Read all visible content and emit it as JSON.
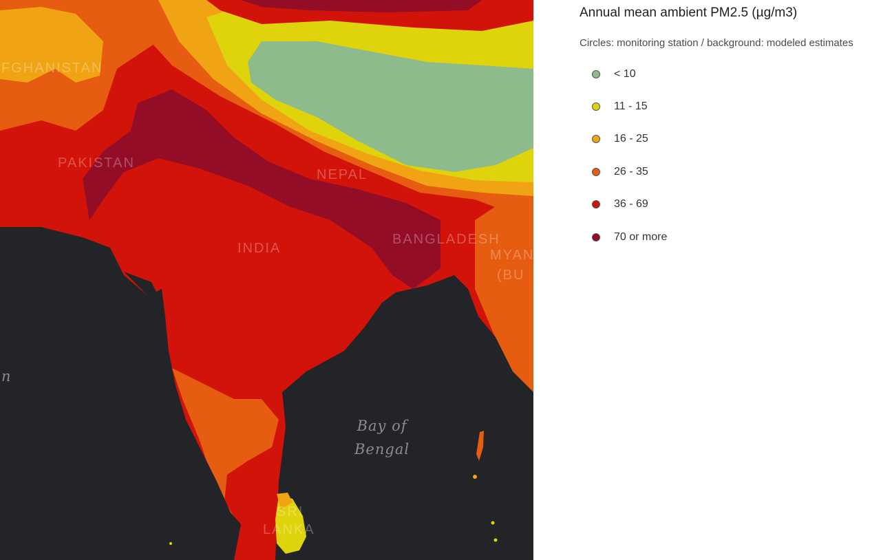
{
  "map": {
    "labels": {
      "afghanistan": "FGHANISTAN",
      "pakistan": "PAKISTAN",
      "nepal": "NEPAL",
      "india": "INDIA",
      "bangladesh": "BANGLADESH",
      "myanmar": "MYAN",
      "burma": "(BU",
      "sri": "SRI",
      "lanka": "LANKA",
      "arabian_sea_fragment": "n",
      "bay_line1": "Bay of",
      "bay_line2": "Bengal"
    },
    "colors": {
      "water": "#232428",
      "lt10": "#8dbb8c",
      "c11_15": "#dfd30c",
      "c16_25": "#f0a414",
      "c26_35": "#e65c10",
      "c36_69": "#d11309",
      "c70plus": "#930d26"
    }
  },
  "legend": {
    "title": "Annual mean ambient PM2.5 (µg/m3)",
    "subtitle": "Circles: monitoring station / background: modeled estimates",
    "items": [
      {
        "label": "< 10",
        "color": "#8dbb8c"
      },
      {
        "label": "11 - 15",
        "color": "#dfd30c"
      },
      {
        "label": "16 - 25",
        "color": "#f0a414"
      },
      {
        "label": "26 - 35",
        "color": "#e65c10"
      },
      {
        "label": "36 - 69",
        "color": "#d11309"
      },
      {
        "label": "70 or more",
        "color": "#930d26"
      }
    ]
  }
}
